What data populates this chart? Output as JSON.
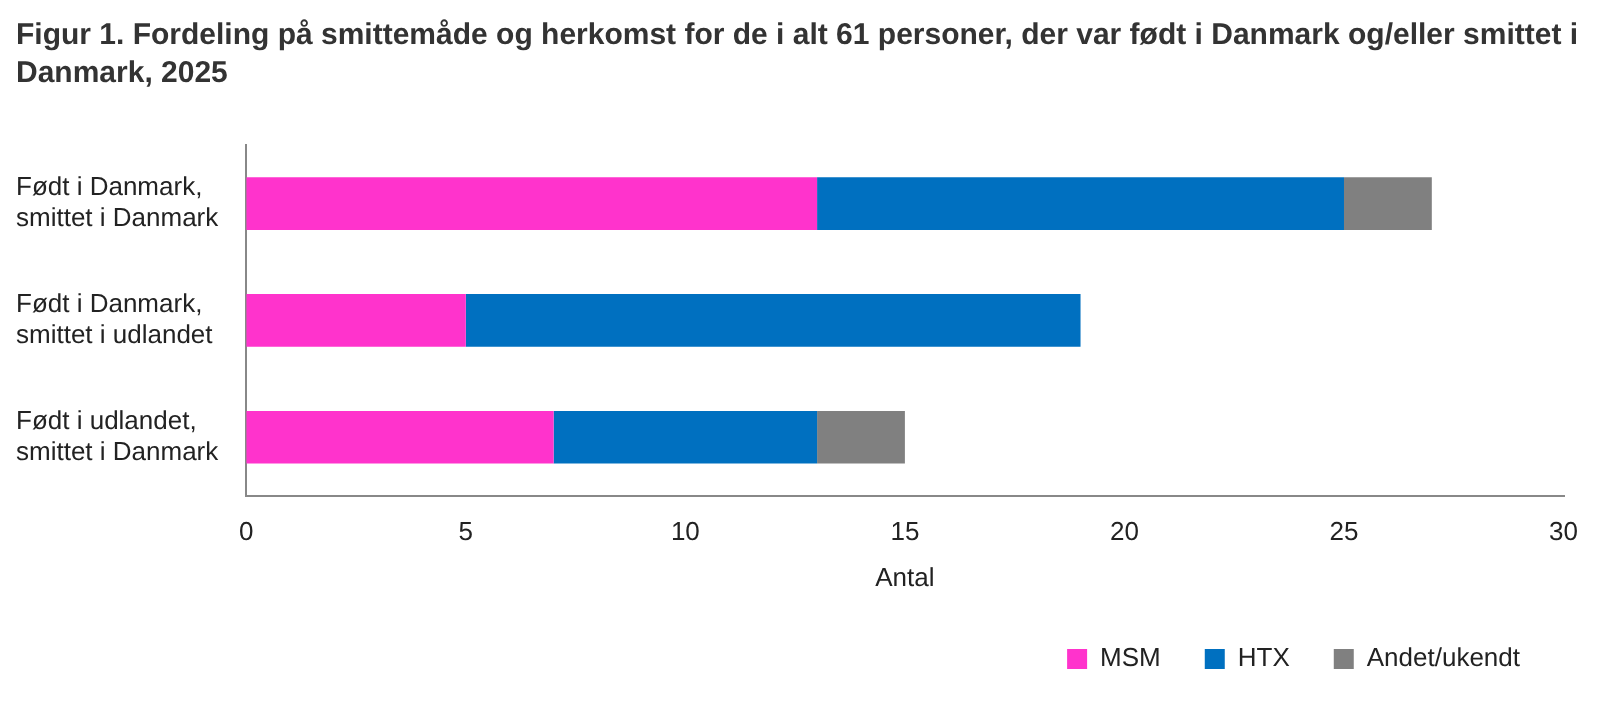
{
  "chart_data": {
    "type": "bar",
    "orientation": "horizontal",
    "stacked": true,
    "title": "Figur 1. Fordeling på smittemåde og herkomst for de i alt 61 personer, der var født i Danmark og/eller smittet  i Danmark, 2025",
    "xlabel": "Antal",
    "categories": [
      "Født i Danmark, smittet i Danmark",
      "Født i Danmark, smittet i udlandet",
      "Født i udlandet, smittet i Danmark"
    ],
    "series": [
      {
        "name": "MSM",
        "color": "#ff33cc",
        "values": [
          13,
          5,
          7
        ]
      },
      {
        "name": "HTX",
        "color": "#0070c0",
        "values": [
          12,
          14,
          6
        ]
      },
      {
        "name": "Andet/ukendt",
        "color": "#808080",
        "values": [
          2,
          0,
          2
        ]
      }
    ],
    "xlim": [
      0,
      30
    ],
    "xticks": [
      0,
      5,
      10,
      15,
      20,
      25,
      30
    ],
    "grid": false,
    "legend": "bottom right"
  }
}
